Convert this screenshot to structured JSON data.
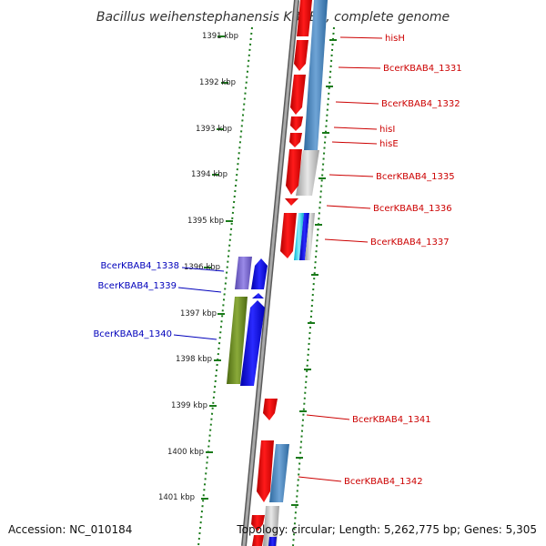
{
  "title": "Bacillus weihenstephanensis KBAB4, complete genome",
  "accession": "Accession: NC_010184",
  "topology": "Topology: circular; Length: 5,262,775 bp; Genes: 5,305",
  "colors": {
    "forward_label": "#cc0000",
    "reverse_label": "#0000bb",
    "tick_green": "#1a7a1a",
    "backbone": "#808080"
  },
  "ticks": [
    "1391 kbp",
    "1392 kbp",
    "1393 kbp",
    "1394 kbp",
    "1395 kbp",
    "1396 kbp",
    "1397 kbp",
    "1398 kbp",
    "1399 kbp",
    "1400 kbp",
    "1401 kbp"
  ],
  "forward_genes": [
    "hisH",
    "BcerKBAB4_1331",
    "BcerKBAB4_1332",
    "hisI",
    "hisE",
    "BcerKBAB4_1335",
    "BcerKBAB4_1336",
    "BcerKBAB4_1337",
    "BcerKBAB4_1341",
    "BcerKBAB4_1342"
  ],
  "reverse_genes": [
    "BcerKBAB4_1338",
    "BcerKBAB4_1339",
    "BcerKBAB4_1340"
  ]
}
